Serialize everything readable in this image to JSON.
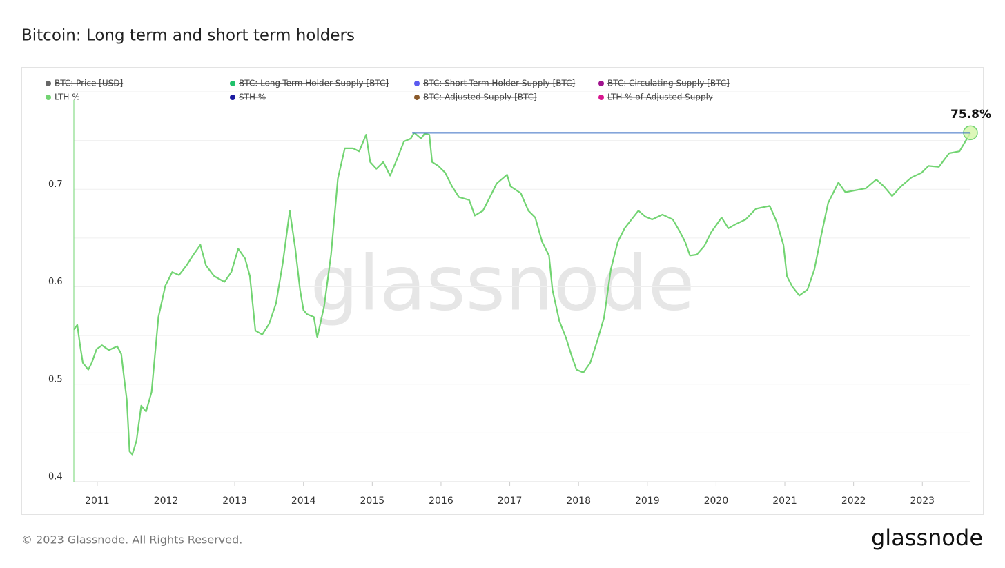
{
  "chart_data": {
    "type": "line",
    "title": "Bitcoin: Long term and short term holders",
    "watermark": "glassnode",
    "footer": "© 2023 Glassnode. All Rights Reserved.",
    "logo": "glassnode",
    "x": [
      2010.66,
      2010.71,
      2010.75,
      2010.79,
      2010.87,
      2010.92,
      2010.99,
      2011.07,
      2011.17,
      2011.29,
      2011.35,
      2011.39,
      2011.43,
      2011.47,
      2011.51,
      2011.57,
      2011.64,
      2011.71,
      2011.79,
      2011.89,
      2011.99,
      2012.09,
      2012.19,
      2012.3,
      2012.4,
      2012.5,
      2012.58,
      2012.7,
      2012.85,
      2012.95,
      2013.05,
      2013.15,
      2013.22,
      2013.3,
      2013.4,
      2013.5,
      2013.6,
      2013.7,
      2013.8,
      2013.88,
      2013.95,
      2014.0,
      2014.05,
      2014.15,
      2014.2,
      2014.3,
      2014.4,
      2014.5,
      2014.6,
      2014.72,
      2014.81,
      2014.91,
      2014.97,
      2015.06,
      2015.16,
      2015.26,
      2015.36,
      2015.46,
      2015.56,
      2015.61,
      2015.71,
      2015.76,
      2015.83,
      2015.87,
      2015.96,
      2016.06,
      2016.16,
      2016.26,
      2016.41,
      2016.49,
      2016.61,
      2016.71,
      2016.81,
      2016.96,
      2017.01,
      2017.16,
      2017.27,
      2017.37,
      2017.47,
      2017.57,
      2017.62,
      2017.72,
      2017.82,
      2017.9,
      2017.97,
      2018.07,
      2018.17,
      2018.27,
      2018.37,
      2018.47,
      2018.57,
      2018.67,
      2018.77,
      2018.87,
      2018.97,
      2019.07,
      2019.22,
      2019.37,
      2019.47,
      2019.55,
      2019.62,
      2019.72,
      2019.83,
      2019.93,
      2020.08,
      2020.18,
      2020.28,
      2020.43,
      2020.58,
      2020.78,
      2020.88,
      2020.98,
      2021.03,
      2021.11,
      2021.21,
      2021.33,
      2021.43,
      2021.53,
      2021.63,
      2021.78,
      2021.88,
      2022.03,
      2022.18,
      2022.33,
      2022.44,
      2022.56,
      2022.69,
      2022.84,
      2022.99,
      2023.09,
      2023.24,
      2023.39,
      2023.54,
      2023.7
    ],
    "series": [
      {
        "name": "LTH %",
        "color": "#72d472",
        "values": [
          0.556,
          0.561,
          0.54,
          0.522,
          0.515,
          0.522,
          0.536,
          0.54,
          0.535,
          0.539,
          0.531,
          0.507,
          0.484,
          0.431,
          0.428,
          0.442,
          0.478,
          0.472,
          0.492,
          0.569,
          0.601,
          0.615,
          0.612,
          0.622,
          0.633,
          0.643,
          0.622,
          0.611,
          0.605,
          0.615,
          0.639,
          0.629,
          0.611,
          0.555,
          0.551,
          0.562,
          0.583,
          0.625,
          0.678,
          0.639,
          0.597,
          0.576,
          0.572,
          0.569,
          0.548,
          0.58,
          0.633,
          0.711,
          0.742,
          0.742,
          0.739,
          0.756,
          0.728,
          0.721,
          0.728,
          0.714,
          0.731,
          0.749,
          0.752,
          0.758,
          0.752,
          0.757,
          0.756,
          0.728,
          0.724,
          0.717,
          0.703,
          0.692,
          0.689,
          0.673,
          0.678,
          0.692,
          0.706,
          0.715,
          0.703,
          0.696,
          0.678,
          0.671,
          0.646,
          0.632,
          0.597,
          0.565,
          0.547,
          0.529,
          0.515,
          0.512,
          0.522,
          0.544,
          0.568,
          0.618,
          0.646,
          0.66,
          0.669,
          0.678,
          0.672,
          0.669,
          0.674,
          0.669,
          0.657,
          0.646,
          0.632,
          0.633,
          0.642,
          0.656,
          0.671,
          0.66,
          0.664,
          0.669,
          0.68,
          0.683,
          0.667,
          0.643,
          0.611,
          0.6,
          0.591,
          0.597,
          0.618,
          0.653,
          0.686,
          0.707,
          0.697,
          0.699,
          0.701,
          0.71,
          0.703,
          0.693,
          0.703,
          0.712,
          0.717,
          0.724,
          0.723,
          0.737,
          0.739,
          0.758
        ]
      }
    ],
    "hidden_series": [
      {
        "name": "BTC: Price [USD]",
        "color": "#666666"
      },
      {
        "name": "BTC: Long-Term Holder Supply [BTC]",
        "color": "#1fc16b"
      },
      {
        "name": "BTC: Short-Term Holder Supply [BTC]",
        "color": "#5b5bf0"
      },
      {
        "name": "BTC: Circulating Supply [BTC]",
        "color": "#a0138e"
      },
      {
        "name": "STH %",
        "color": "#1a1aa0"
      },
      {
        "name": "BTC: Adjusted Supply [BTC]",
        "color": "#8a5a2b"
      },
      {
        "name": "LTH % of Adjusted Supply",
        "color": "#d8168f"
      }
    ],
    "annotation": {
      "label": "75.8%",
      "value": 0.758,
      "x_start": 2015.58,
      "color": "#3a6fc4"
    },
    "xlim": [
      2010.66,
      2023.7
    ],
    "xticks": [
      2011,
      2012,
      2013,
      2014,
      2015,
      2016,
      2017,
      2018,
      2019,
      2020,
      2021,
      2022,
      2023
    ],
    "ylim": [
      0.4,
      0.8
    ],
    "yticks": [
      0.4,
      0.5,
      0.6,
      0.7
    ],
    "ygrid": [
      0.4,
      0.45,
      0.5,
      0.55,
      0.6,
      0.65,
      0.7,
      0.75,
      0.8
    ],
    "grid": true
  }
}
